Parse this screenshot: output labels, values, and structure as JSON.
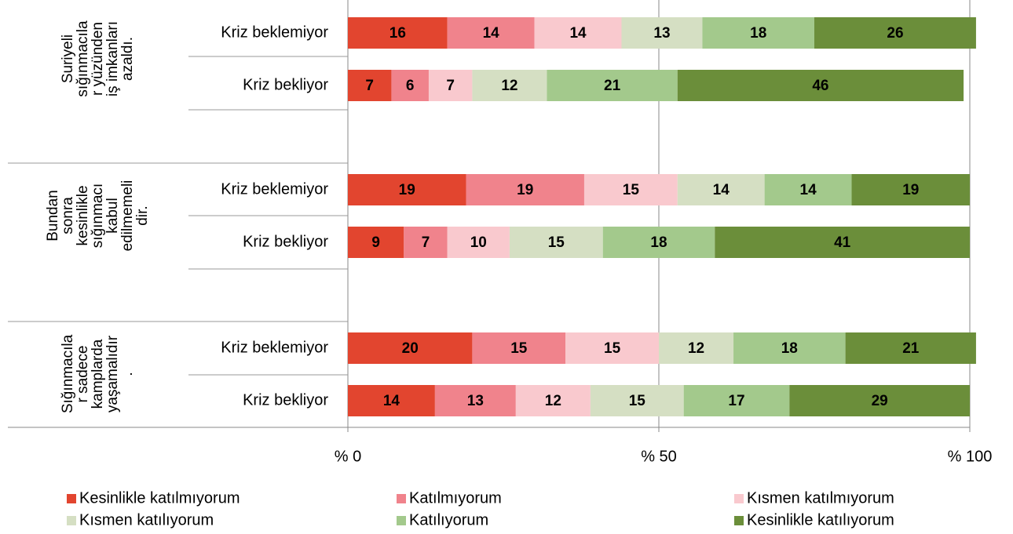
{
  "chart_data": {
    "type": "stacked-bar-horizontal",
    "groups": [
      {
        "label": [
          "Suriyeli",
          "sığınmacıla",
          "r yüzünden",
          "iş imkanları",
          "azaldı."
        ]
      },
      {
        "label": [
          "Bundan",
          "sonra",
          "kesinlikle",
          "sığınmacı",
          "kabul",
          "edilmemeli",
          "dir."
        ]
      },
      {
        "label": [
          "Sığınmacıla",
          "r sadece",
          "kamplarda",
          "yaşamalıdır",
          "."
        ]
      }
    ],
    "categories": [
      "Kriz beklemiyor",
      "Kriz bekliyor",
      "Kriz beklemiyor",
      "Kriz bekliyor",
      "Kriz beklemiyor",
      "Kriz bekliyor"
    ],
    "series": [
      {
        "name": "Kesinlikle katılmıyorum",
        "color": "#e2452f",
        "values": [
          16,
          7,
          19,
          9,
          20,
          14
        ]
      },
      {
        "name": "Katılmıyorum",
        "color": "#f0838c",
        "values": [
          14,
          6,
          19,
          7,
          15,
          13
        ]
      },
      {
        "name": "Kısmen katılmıyorum",
        "color": "#f9c9ce",
        "values": [
          14,
          7,
          15,
          10,
          15,
          12
        ]
      },
      {
        "name": "Kısmen katılıyorum",
        "color": "#d5dfc3",
        "values": [
          13,
          12,
          14,
          15,
          12,
          15
        ]
      },
      {
        "name": "Katılıyorum",
        "color": "#a3c98c",
        "values": [
          18,
          21,
          14,
          18,
          18,
          17
        ]
      },
      {
        "name": "Kesinlikle katılıyorum",
        "color": "#6b8e3a",
        "values": [
          26,
          46,
          19,
          41,
          21,
          29
        ]
      }
    ],
    "xlim": [
      0,
      100
    ],
    "xticks": [
      {
        "value": 0,
        "label": "% 0"
      },
      {
        "value": 50,
        "label": "% 50"
      },
      {
        "value": 100,
        "label": "% 100"
      }
    ],
    "grid": true,
    "legend": "bottom"
  }
}
